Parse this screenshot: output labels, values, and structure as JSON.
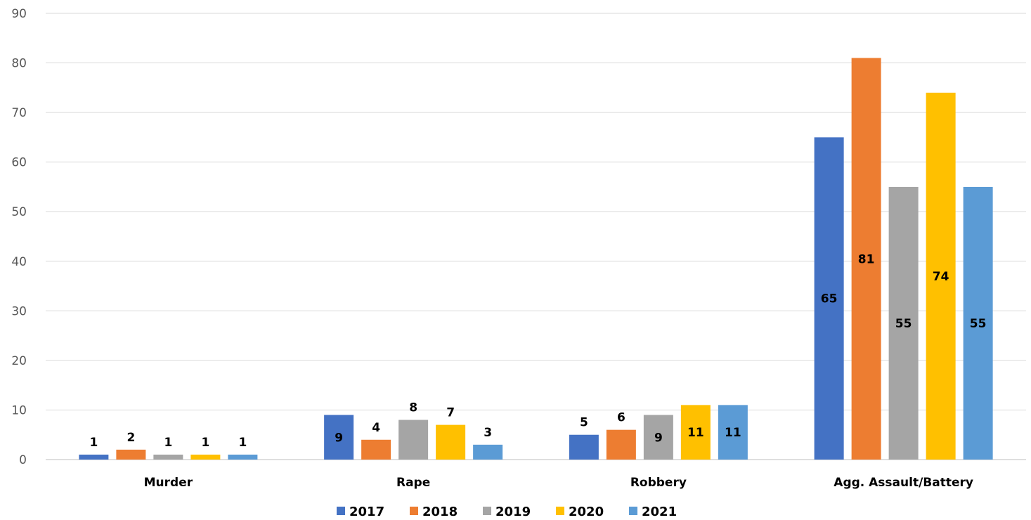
{
  "chart_data": {
    "type": "bar",
    "title": "",
    "xlabel": "",
    "ylabel": "",
    "ylim": [
      0,
      90
    ],
    "yticks": [
      0,
      10,
      20,
      30,
      40,
      50,
      60,
      70,
      80,
      90
    ],
    "grid": true,
    "legend_position": "bottom",
    "categories": [
      "Murder",
      "Rape",
      "Robbery",
      "Agg. Assault/Battery"
    ],
    "series": [
      {
        "name": "2017",
        "color": "#4472c4",
        "values": [
          1,
          9,
          5,
          65
        ]
      },
      {
        "name": "2018",
        "color": "#ed7d31",
        "values": [
          2,
          4,
          6,
          81
        ]
      },
      {
        "name": "2019",
        "color": "#a5a5a5",
        "values": [
          1,
          8,
          9,
          55
        ]
      },
      {
        "name": "2020",
        "color": "#ffc000",
        "values": [
          1,
          7,
          11,
          74
        ]
      },
      {
        "name": "2021",
        "color": "#5b9bd5",
        "values": [
          1,
          3,
          11,
          55
        ]
      }
    ]
  }
}
